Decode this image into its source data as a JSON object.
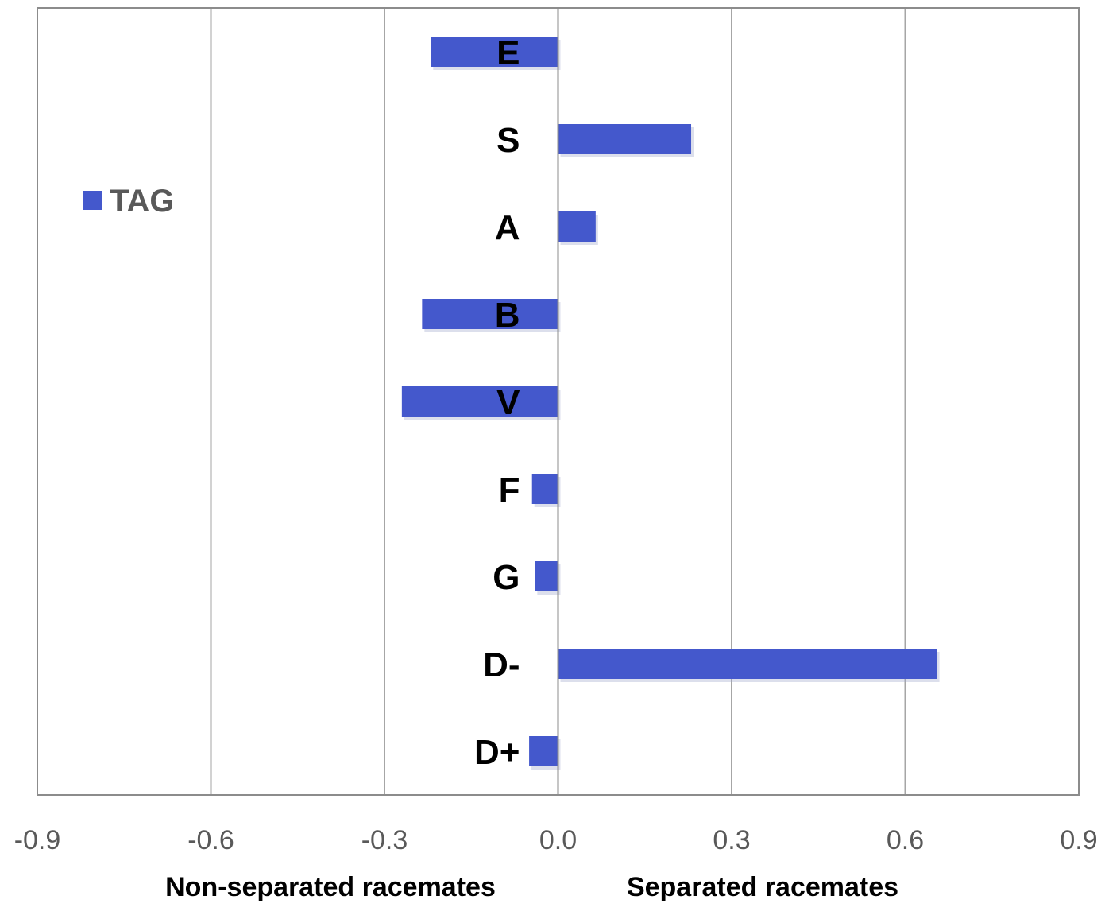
{
  "chart_data": {
    "type": "bar",
    "orientation": "horizontal",
    "title": "",
    "categories": [
      "E",
      "S",
      "A",
      "B",
      "V",
      "F",
      "G",
      "D-",
      "D+"
    ],
    "series": [
      {
        "name": "TAG",
        "values": [
          -0.22,
          0.23,
          0.065,
          -0.235,
          -0.27,
          -0.045,
          -0.04,
          0.655,
          -0.05
        ],
        "color": "#4458cc"
      }
    ],
    "xlim": [
      -0.9,
      0.9
    ],
    "x_ticks": [
      "-0.9",
      "-0.6",
      "-0.3",
      "0.0",
      "0.3",
      "0.6",
      "0.9"
    ],
    "x_tick_values": [
      -0.9,
      -0.6,
      -0.3,
      0.0,
      0.3,
      0.6,
      0.9
    ],
    "xlabel_left": "Non-separated racemates",
    "xlabel_right": "Separated racemates",
    "ylabel": "",
    "grid": "vertical",
    "legend_position": "top-left",
    "colors": {
      "bar": "#4458cc",
      "gridline": "#a6a6a6",
      "frame": "#8c8c8c",
      "tick_text": "#595959",
      "category_text": "#000000",
      "legend_text": "#595959"
    }
  }
}
